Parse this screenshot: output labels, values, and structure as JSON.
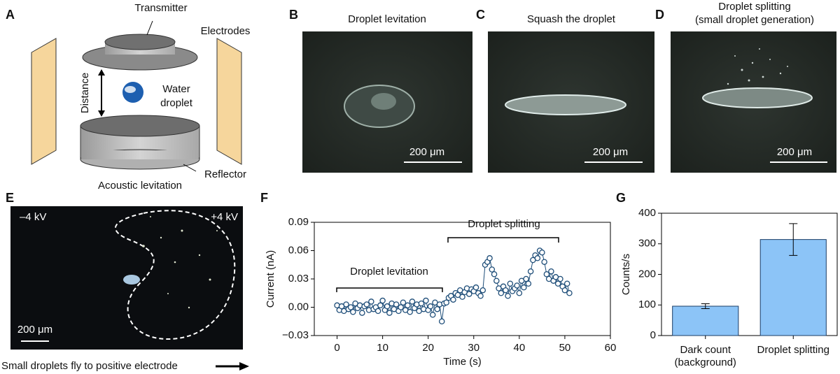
{
  "panels": {
    "a": {
      "label": "A",
      "transmitter": "Transmitter",
      "electrodes": "Electrodes",
      "distance": "Distance",
      "water": [
        "Water",
        "droplet"
      ],
      "reflector": "Reflector",
      "caption": "Acoustic levitation"
    },
    "b": {
      "label": "B",
      "title": "Droplet levitation",
      "scale": "200 μm"
    },
    "c": {
      "label": "C",
      "title": "Squash the droplet",
      "scale": "200 μm"
    },
    "d": {
      "label": "D",
      "title": [
        "Droplet splitting",
        "(small droplet generation)"
      ],
      "scale": "200 μm"
    },
    "e": {
      "label": "E",
      "left": "–4 kV",
      "right": "+4 kV",
      "scale": "200 μm",
      "caption": "Small droplets fly to positive electrode"
    },
    "f": {
      "label": "F"
    },
    "g": {
      "label": "G"
    }
  },
  "chart_data": [
    {
      "type": "scatter",
      "xlabel": "Time (s)",
      "ylabel": "Current (nA)",
      "annotations": [
        "Droplet levitation",
        "Droplet splitting"
      ],
      "color": "#1f4e79",
      "xlim": [
        -5,
        60
      ],
      "ylim": [
        -0.03,
        0.09
      ],
      "xticks": [
        0,
        10,
        20,
        30,
        40,
        50,
        60
      ],
      "yticks": [
        {
          "value": -0.03,
          "label": "−0.03"
        },
        {
          "value": 0,
          "label": "0.00"
        },
        {
          "value": 0.03,
          "label": "0.03"
        },
        {
          "value": 0.06,
          "label": "0.06"
        },
        {
          "value": 0.09,
          "label": "0.09"
        }
      ],
      "x": [
        0,
        0.5,
        1,
        1.5,
        2,
        2.5,
        3,
        3.5,
        4,
        4.5,
        5,
        5.5,
        6,
        6.5,
        7,
        7.5,
        8,
        8.5,
        9,
        9.5,
        10,
        10.5,
        11,
        11.5,
        12,
        12.5,
        13,
        13.5,
        14,
        14.5,
        15,
        15.5,
        16,
        16.5,
        17,
        17.5,
        18,
        18.5,
        19,
        19.5,
        20,
        20.5,
        21,
        21.5,
        22,
        22.5,
        23,
        23.5,
        24,
        24.5,
        25,
        25.5,
        26,
        26.5,
        27,
        27.5,
        28,
        28.5,
        29,
        29.5,
        30,
        30.5,
        31,
        31.5,
        32,
        32.5,
        33,
        33.5,
        34,
        34.5,
        35,
        35.5,
        36,
        36.5,
        37,
        37.5,
        38,
        38.5,
        39,
        39.5,
        40,
        40.5,
        41,
        41.5,
        42,
        42.5,
        43,
        43.5,
        44,
        44.5,
        45,
        45.5,
        46,
        46.5,
        47,
        47.5,
        48,
        48.5,
        49,
        49.5,
        50,
        50.5,
        51
      ],
      "values": [
        0.002,
        -0.003,
        0.001,
        -0.004,
        0.003,
        -0.002,
        0.0,
        -0.005,
        0.004,
        -0.001,
        0.002,
        -0.006,
        0.001,
        0.003,
        -0.003,
        0.006,
        -0.002,
        0.0,
        -0.004,
        0.002,
        0.007,
        -0.003,
        0.001,
        -0.006,
        0.004,
        -0.002,
        0.003,
        -0.004,
        0.0,
        0.005,
        -0.003,
        0.002,
        -0.005,
        0.006,
        -0.001,
        0.003,
        -0.004,
        0.004,
        -0.002,
        0.007,
        -0.003,
        0.001,
        -0.008,
        0.005,
        -0.002,
        0.003,
        -0.015,
        0.004,
        0.005,
        0.01,
        0.012,
        0.008,
        0.015,
        0.013,
        0.018,
        0.011,
        0.016,
        0.02,
        0.014,
        0.019,
        0.017,
        0.021,
        0.015,
        0.012,
        0.018,
        0.045,
        0.048,
        0.052,
        0.04,
        0.035,
        0.028,
        0.02,
        0.015,
        0.022,
        0.018,
        0.012,
        0.025,
        0.017,
        0.02,
        0.023,
        0.015,
        0.028,
        0.021,
        0.03,
        0.025,
        0.038,
        0.05,
        0.055,
        0.052,
        0.06,
        0.058,
        0.048,
        0.035,
        0.03,
        0.038,
        0.028,
        0.032,
        0.025,
        0.03,
        0.022,
        0.018,
        0.025,
        0.015
      ]
    },
    {
      "type": "bar",
      "ylabel": "Counts/s",
      "categories": [
        "Dark count (background)",
        "Droplet splitting"
      ],
      "values": [
        96,
        314
      ],
      "errors": [
        8,
        52
      ],
      "color": "#8cc4f7",
      "ylim": [
        0,
        400
      ],
      "yticks": [
        0,
        100,
        200,
        300,
        400
      ]
    }
  ]
}
